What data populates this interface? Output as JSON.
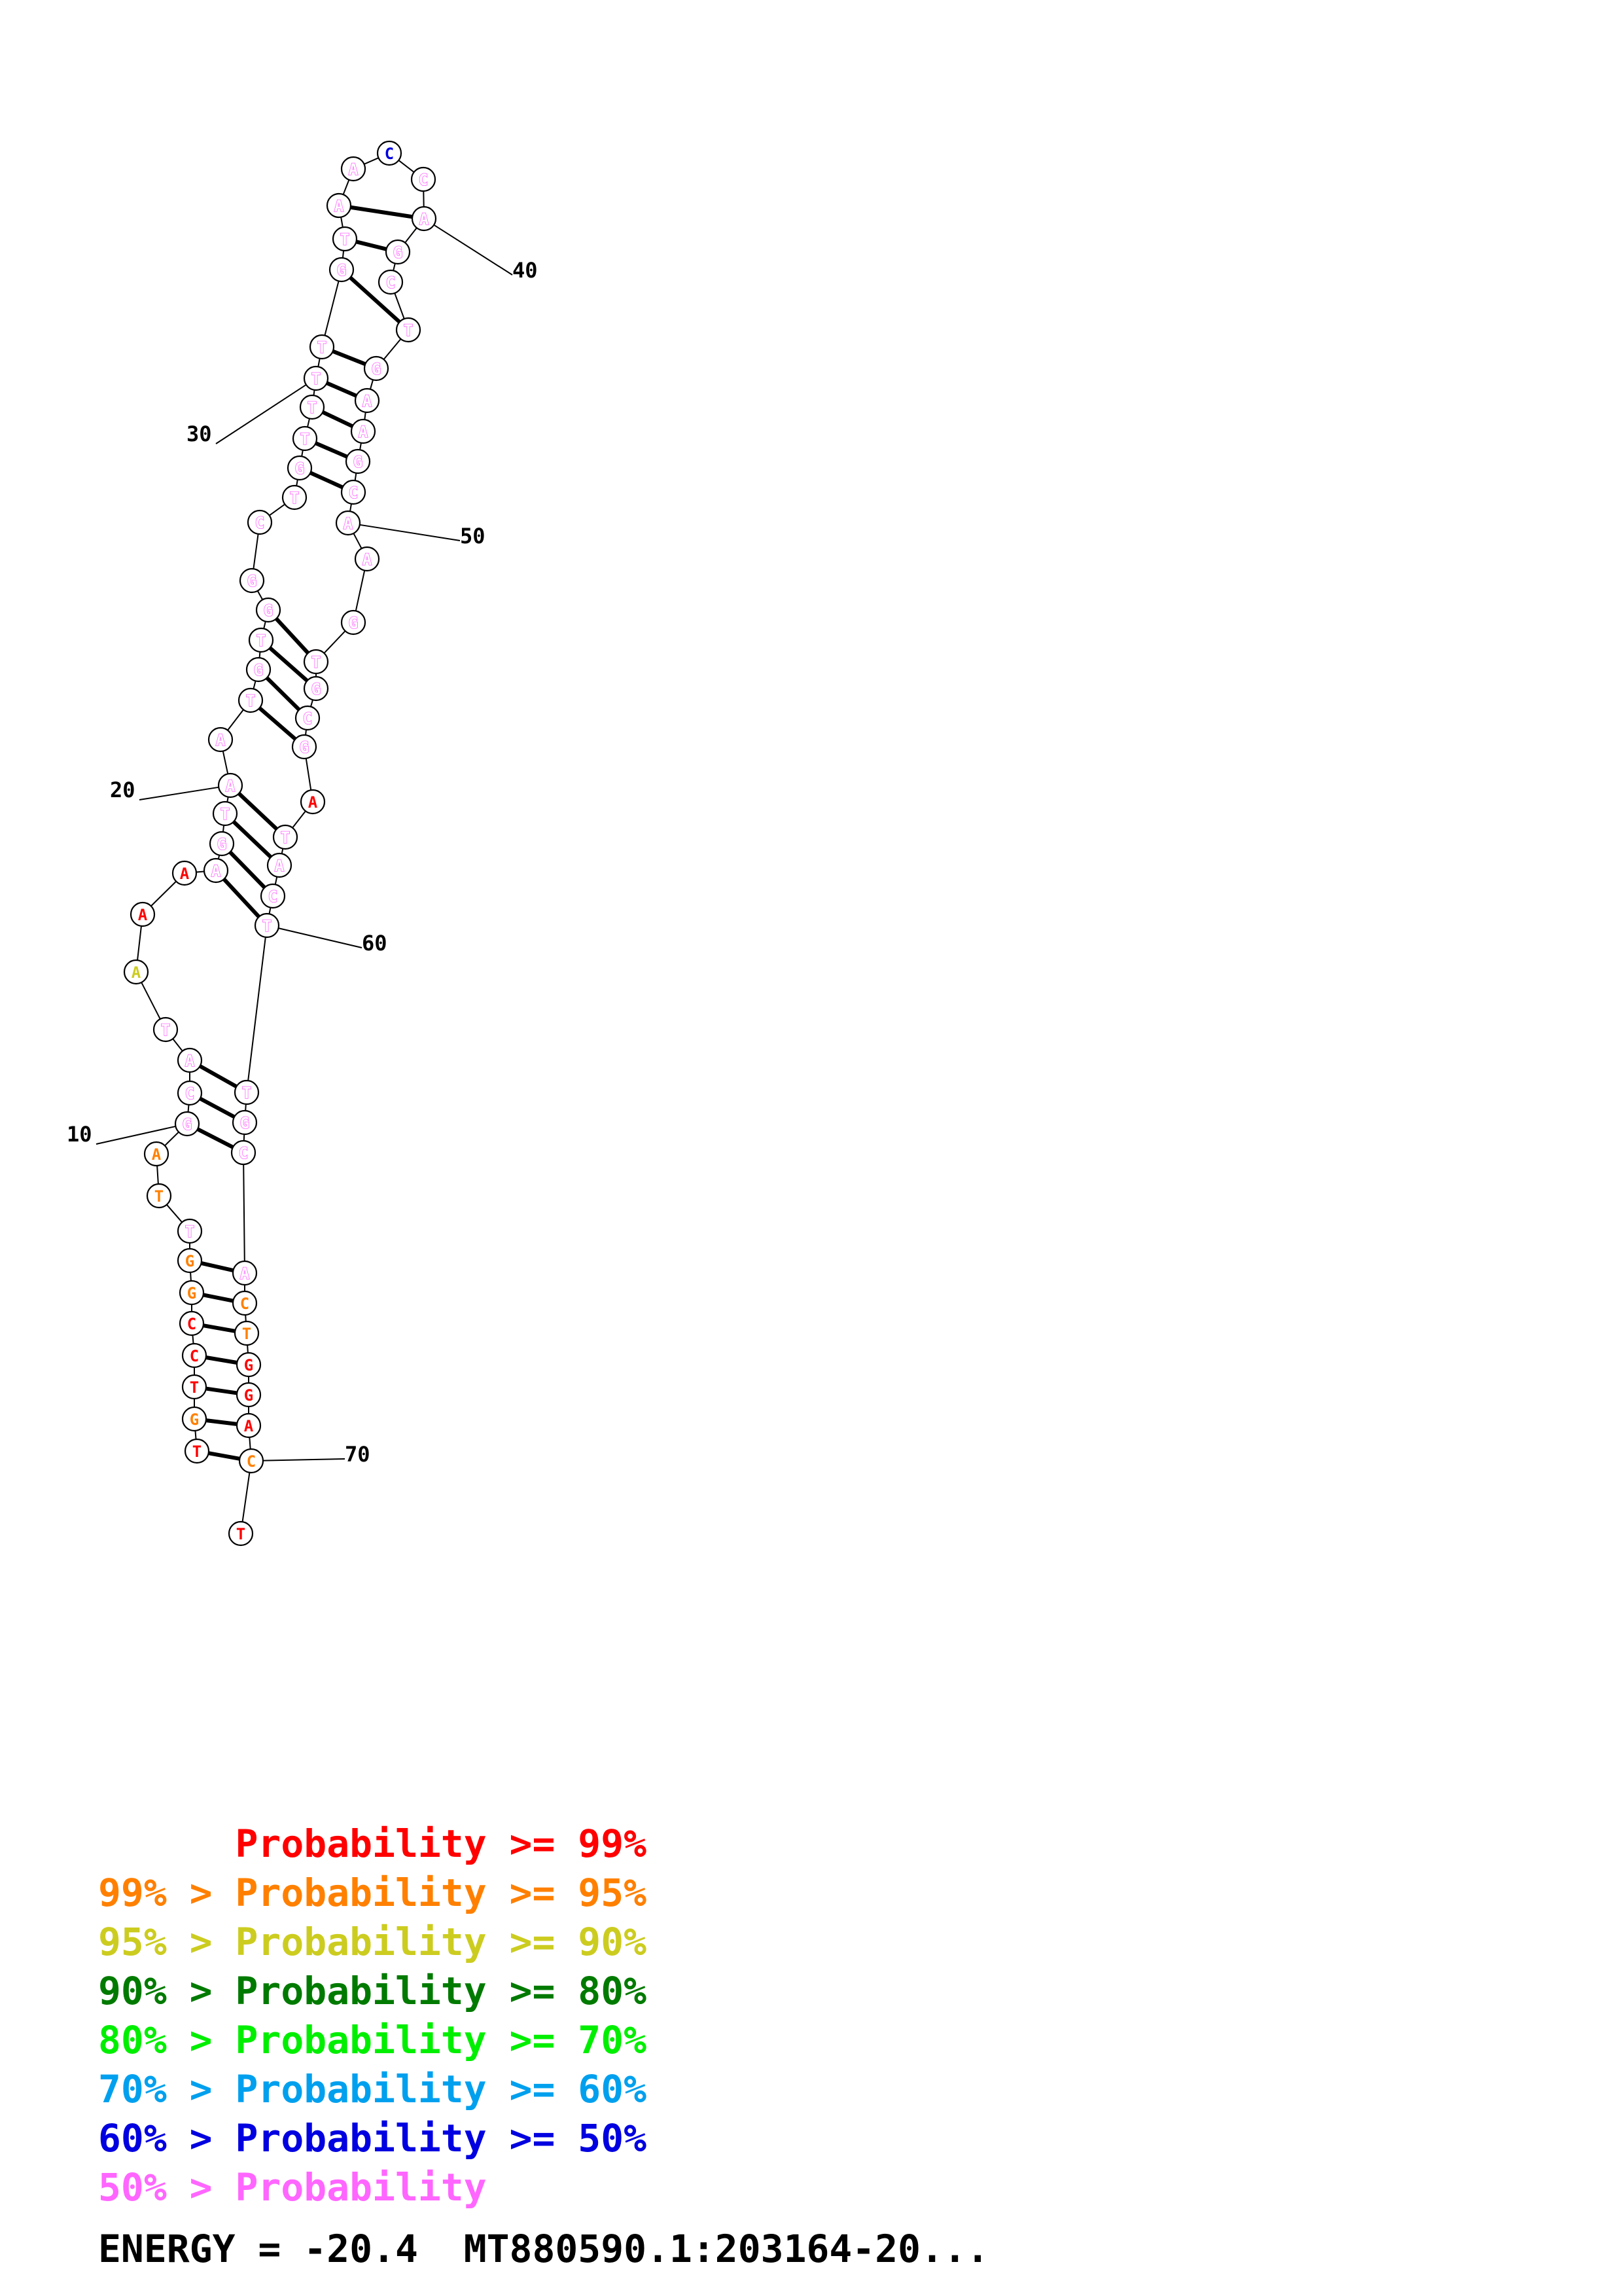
{
  "colors": {
    "p99": "#ff0000",
    "p95": "#ff8000",
    "p90": "#cccc20",
    "p80": "#007a00",
    "p70": "#00ee00",
    "p60": "#00a0ee",
    "p50": "#0000e0",
    "low": "#ff66ff"
  },
  "sequence": [
    {
      "n": 1,
      "base": "T",
      "p": "p99"
    },
    {
      "n": 2,
      "base": "G",
      "p": "p95"
    },
    {
      "n": 3,
      "base": "T",
      "p": "p99"
    },
    {
      "n": 4,
      "base": "C",
      "p": "p99"
    },
    {
      "n": 5,
      "base": "C",
      "p": "p99"
    },
    {
      "n": 6,
      "base": "G",
      "p": "p95"
    },
    {
      "n": 7,
      "base": "G",
      "p": "p95"
    },
    {
      "n": 8,
      "base": "T",
      "p": "low"
    },
    {
      "n": 9,
      "base": "T",
      "p": "p95"
    },
    {
      "n": 10,
      "base": "A",
      "p": "p95"
    },
    {
      "n": 11,
      "base": "G",
      "p": "low"
    },
    {
      "n": 12,
      "base": "C",
      "p": "low"
    },
    {
      "n": 13,
      "base": "A",
      "p": "low"
    },
    {
      "n": 14,
      "base": "T",
      "p": "low"
    },
    {
      "n": 15,
      "base": "A",
      "p": "p90"
    },
    {
      "n": 16,
      "base": "A",
      "p": "p99"
    },
    {
      "n": 17,
      "base": "A",
      "p": "p99"
    },
    {
      "n": 18,
      "base": "A",
      "p": "low"
    },
    {
      "n": 19,
      "base": "G",
      "p": "low"
    },
    {
      "n": 20,
      "base": "T",
      "p": "low"
    },
    {
      "n": 21,
      "base": "A",
      "p": "low"
    },
    {
      "n": 22,
      "base": "A",
      "p": "low"
    },
    {
      "n": 23,
      "base": "T",
      "p": "low"
    },
    {
      "n": 24,
      "base": "G",
      "p": "low"
    },
    {
      "n": 25,
      "base": "T",
      "p": "low"
    },
    {
      "n": 26,
      "base": "G",
      "p": "low"
    },
    {
      "n": 27,
      "base": "G",
      "p": "low"
    },
    {
      "n": 28,
      "base": "C",
      "p": "low"
    },
    {
      "n": 29,
      "base": "T",
      "p": "low"
    },
    {
      "n": 30,
      "base": "G",
      "p": "low"
    },
    {
      "n": 31,
      "base": "T",
      "p": "low"
    },
    {
      "n": 32,
      "base": "T",
      "p": "low"
    },
    {
      "n": 33,
      "base": "T",
      "p": "low"
    },
    {
      "n": 34,
      "base": "T",
      "p": "low"
    },
    {
      "n": 35,
      "base": "G",
      "p": "low"
    },
    {
      "n": 36,
      "base": "T",
      "p": "low"
    },
    {
      "n": 37,
      "base": "A",
      "p": "low"
    },
    {
      "n": 38,
      "base": "A",
      "p": "low"
    },
    {
      "n": 39,
      "base": "C",
      "p": "p50"
    },
    {
      "n": 40,
      "base": "C",
      "p": "low"
    },
    {
      "n": 41,
      "base": "A",
      "p": "low"
    },
    {
      "n": 42,
      "base": "G",
      "p": "low"
    },
    {
      "n": 43,
      "base": "C",
      "p": "low"
    },
    {
      "n": 44,
      "base": "T",
      "p": "low"
    },
    {
      "n": 45,
      "base": "G",
      "p": "low"
    },
    {
      "n": 46,
      "base": "A",
      "p": "low"
    },
    {
      "n": 47,
      "base": "A",
      "p": "low"
    },
    {
      "n": 48,
      "base": "G",
      "p": "low"
    },
    {
      "n": 49,
      "base": "C",
      "p": "low"
    },
    {
      "n": 50,
      "base": "A",
      "p": "low"
    },
    {
      "n": 51,
      "base": "A",
      "p": "low"
    },
    {
      "n": 52,
      "base": "G",
      "p": "low"
    },
    {
      "n": 53,
      "base": "T",
      "p": "low"
    },
    {
      "n": 54,
      "base": "G",
      "p": "low"
    },
    {
      "n": 55,
      "base": "C",
      "p": "low"
    },
    {
      "n": 56,
      "base": "G",
      "p": "low"
    },
    {
      "n": 57,
      "base": "A",
      "p": "p99"
    },
    {
      "n": 58,
      "base": "T",
      "p": "low"
    },
    {
      "n": 59,
      "base": "A",
      "p": "low"
    },
    {
      "n": 60,
      "base": "C",
      "p": "low"
    },
    {
      "n": 61,
      "base": "T",
      "p": "low"
    },
    {
      "n": 62,
      "base": "T",
      "p": "low"
    },
    {
      "n": 63,
      "base": "G",
      "p": "low"
    },
    {
      "n": 64,
      "base": "C",
      "p": "low"
    },
    {
      "n": 65,
      "base": "A",
      "p": "low"
    },
    {
      "n": 66,
      "base": "C",
      "p": "p95"
    },
    {
      "n": 67,
      "base": "T",
      "p": "p95"
    },
    {
      "n": 68,
      "base": "G",
      "p": "p99"
    },
    {
      "n": 69,
      "base": "G",
      "p": "p99"
    },
    {
      "n": 70,
      "base": "A",
      "p": "p99"
    },
    {
      "n": 71,
      "base": "C",
      "p": "p95"
    },
    {
      "n": 72,
      "base": "T",
      "p": "p99"
    }
  ],
  "pairs": [
    [
      1,
      71
    ],
    [
      2,
      70
    ],
    [
      3,
      69
    ],
    [
      4,
      68
    ],
    [
      5,
      67
    ],
    [
      6,
      66
    ],
    [
      7,
      65
    ],
    [
      11,
      64
    ],
    [
      12,
      63
    ],
    [
      13,
      62
    ],
    [
      18,
      61
    ],
    [
      19,
      60
    ],
    [
      20,
      59
    ],
    [
      21,
      58
    ],
    [
      23,
      56
    ],
    [
      24,
      55
    ],
    [
      25,
      54
    ],
    [
      26,
      53
    ],
    [
      30,
      49
    ],
    [
      31,
      48
    ],
    [
      32,
      47
    ],
    [
      33,
      46
    ],
    [
      34,
      45
    ],
    [
      35,
      44
    ],
    [
      36,
      42
    ],
    [
      37,
      41
    ]
  ],
  "position_labels": [
    {
      "text": "10",
      "n": 11
    },
    {
      "text": "20",
      "n": 21
    },
    {
      "text": "30",
      "n": 33
    },
    {
      "text": "40",
      "n": 41
    },
    {
      "text": "50",
      "n": 50
    },
    {
      "text": "60",
      "n": 61
    },
    {
      "text": "70",
      "n": 71
    }
  ],
  "legend": [
    {
      "text": "      Probability >= 99%",
      "color": "p99"
    },
    {
      "text": "99% > Probability >= 95%",
      "color": "p95"
    },
    {
      "text": "95% > Probability >= 90%",
      "color": "p90"
    },
    {
      "text": "90% > Probability >= 80%",
      "color": "p80"
    },
    {
      "text": "80% > Probability >= 70%",
      "color": "p70"
    },
    {
      "text": "70% > Probability >= 60%",
      "color": "p60"
    },
    {
      "text": "60% > Probability >= 50%",
      "color": "p50"
    },
    {
      "text": "50% > Probability",
      "color": "low"
    }
  ],
  "energy_line": "ENERGY = -20.4  MT880590.1:203164-20..."
}
